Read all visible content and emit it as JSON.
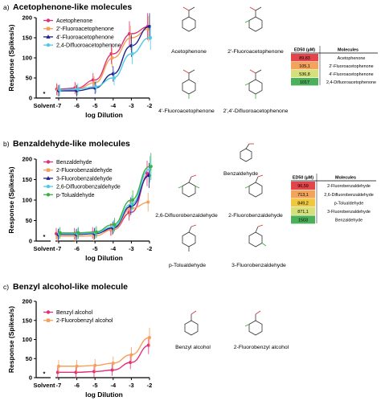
{
  "panels": [
    {
      "letter": "a)",
      "title": "Acetophenone-like molecules",
      "xlabel": "log Dilution",
      "ylabel": "Response (Spikes/s)",
      "solvent_label": "Solvent",
      "legend": [
        "Acetophenone",
        "2'-Fluoroacetophenone",
        "4'-Fluoroacetophenone",
        "2,4-Difluoroacetophenone"
      ],
      "molecules": [
        "Acetophenone",
        "2'-Fluoroacetophenone",
        "4'-Fluoroacetophenone",
        "2',4'-Difluoroacetophenone"
      ],
      "table": {
        "head": [
          "ED50 (µM)",
          "Molecules"
        ],
        "rows": [
          [
            "89,83",
            "Acetophenone"
          ],
          [
            "105,1",
            "2'-Fluoroacetophenone"
          ],
          [
            "536,8",
            "4'-Fluoroacetophenone"
          ],
          [
            "1017",
            "2,4-Difluoroacetophenone"
          ]
        ]
      }
    },
    {
      "letter": "b)",
      "title": "Benzaldehyde-like molecules",
      "xlabel": "log Dilution",
      "ylabel": "Response (Spikes/s)",
      "solvent_label": "Solvent",
      "legend": [
        "Benzaldehyde",
        "2-Fluorobenzaldehyde",
        "3-Fluorobenzaldehyde",
        "2,6-Difluorobenzaldehyde",
        "p-Tolualdehyde"
      ],
      "molecules": [
        "Benzaldehyde",
        "2,6-Difluorobenzaldehyde",
        "2-Fluorobenzaldehyde",
        "p-Tolualdehyde",
        "3-Fluorobenzaldehyde"
      ],
      "table": {
        "head": [
          "ED50 (µM)",
          "Molecules"
        ],
        "rows": [
          [
            "96,59",
            "2-Fluorobenzaldehyde"
          ],
          [
            "713,1",
            "2,6-Difluorobenzaldehyde"
          ],
          [
            "849,2",
            "p-Tolualdehyde"
          ],
          [
            "871,1",
            "3-Fluorobenzaldehyde"
          ],
          [
            "1503",
            "Benzaldehyde"
          ]
        ]
      }
    },
    {
      "letter": "c)",
      "title": "Benzyl alcohol-like molecule",
      "xlabel": "log Dilution",
      "ylabel": "Response (Spikes/s)",
      "solvent_label": "Solvent",
      "legend": [
        "Benzyl alcohol",
        "2-Fluorobenzyl alcohol"
      ],
      "molecules": [
        "Benzyl alcohol",
        "2-Fluorobenzyl alcohol"
      ]
    }
  ],
  "colors": {
    "series_a": [
      "#e0307a",
      "#f5a05a",
      "#1f1f8f",
      "#4ec9e6"
    ],
    "series_b": [
      "#e0307a",
      "#f5a05a",
      "#1f1f8f",
      "#4ec9e6",
      "#3cb043"
    ],
    "series_c": [
      "#e0307a",
      "#f5a05a"
    ],
    "table_a": [
      "#e2454a",
      "#f3a35a",
      "#d6e07a",
      "#4cb05a"
    ],
    "table_b": [
      "#e2454a",
      "#f3a35a",
      "#f0c840",
      "#d6e07a",
      "#4cb05a"
    ]
  },
  "chart_data": [
    {
      "type": "line",
      "title": "Acetophenone-like molecules",
      "xlabel": "log Dilution",
      "ylabel": "Response (Spikes/s)",
      "categories": [
        "Solvent",
        "-7",
        "-6",
        "-5",
        "-4",
        "-3",
        "-2"
      ],
      "x": [
        -7,
        -6,
        -5,
        -4,
        -3,
        -2
      ],
      "xlim": [
        -7,
        -2
      ],
      "ylim": [
        0,
        200
      ],
      "yticks": [
        0,
        50,
        100,
        150,
        200
      ],
      "xticks": [
        -7,
        -6,
        -5,
        -4,
        -3,
        -2
      ],
      "solvent_value": 12,
      "series": [
        {
          "name": "Acetophenone",
          "values": [
            22,
            25,
            45,
            110,
            160,
            178
          ]
        },
        {
          "name": "2'-Fluoroacetophenone",
          "values": [
            20,
            22,
            38,
            100,
            150,
            172
          ]
        },
        {
          "name": "4'-Fluoroacetophenone",
          "values": [
            18,
            18,
            25,
            60,
            130,
            178
          ]
        },
        {
          "name": "2,4-Difluoroacetophenone",
          "values": [
            20,
            22,
            28,
            50,
            110,
            150
          ]
        }
      ]
    },
    {
      "type": "line",
      "title": "Benzaldehyde-like molecules",
      "xlabel": "log Dilution",
      "ylabel": "Response (Spikes/s)",
      "categories": [
        "Solvent",
        "-7",
        "-6",
        "-5",
        "-4",
        "-3",
        "-2"
      ],
      "x": [
        -7,
        -6,
        -5,
        -4,
        -3,
        -2
      ],
      "xlim": [
        -7,
        -2
      ],
      "ylim": [
        0,
        200
      ],
      "yticks": [
        0,
        50,
        100,
        150,
        200
      ],
      "xticks": [
        -7,
        -6,
        -5,
        -4,
        -3,
        -2
      ],
      "solvent_value": 12,
      "series": [
        {
          "name": "Benzaldehyde",
          "values": [
            18,
            18,
            20,
            28,
            70,
            165
          ]
        },
        {
          "name": "2-Fluorobenzaldehyde",
          "values": [
            12,
            12,
            13,
            28,
            80,
            95
          ]
        },
        {
          "name": "3-Fluorobenzaldehyde",
          "values": [
            16,
            16,
            18,
            32,
            85,
            160
          ]
        },
        {
          "name": "2,6-Difluorobenzaldehyde",
          "values": [
            18,
            18,
            20,
            35,
            90,
            175
          ]
        },
        {
          "name": "p-Tolualdehyde",
          "values": [
            20,
            20,
            22,
            40,
            100,
            182
          ]
        }
      ]
    },
    {
      "type": "line",
      "title": "Benzyl alcohol-like molecule",
      "xlabel": "log Dilution",
      "ylabel": "Response (Spikes/s)",
      "categories": [
        "Solvent",
        "-7",
        "-6",
        "-5",
        "-4",
        "-3",
        "-2"
      ],
      "x": [
        -7,
        -6,
        -5,
        -4,
        -3,
        -2
      ],
      "xlim": [
        -7,
        -2
      ],
      "ylim": [
        0,
        200
      ],
      "yticks": [
        0,
        50,
        100,
        150,
        200
      ],
      "xticks": [
        -7,
        -6,
        -5,
        -4,
        -3,
        -2
      ],
      "solvent_value": 12,
      "series": [
        {
          "name": "Benzyl alcohol",
          "values": [
            14,
            14,
            16,
            20,
            40,
            85
          ]
        },
        {
          "name": "2-Fluorobenzyl alcohol",
          "values": [
            30,
            30,
            32,
            38,
            60,
            105
          ]
        }
      ]
    }
  ]
}
